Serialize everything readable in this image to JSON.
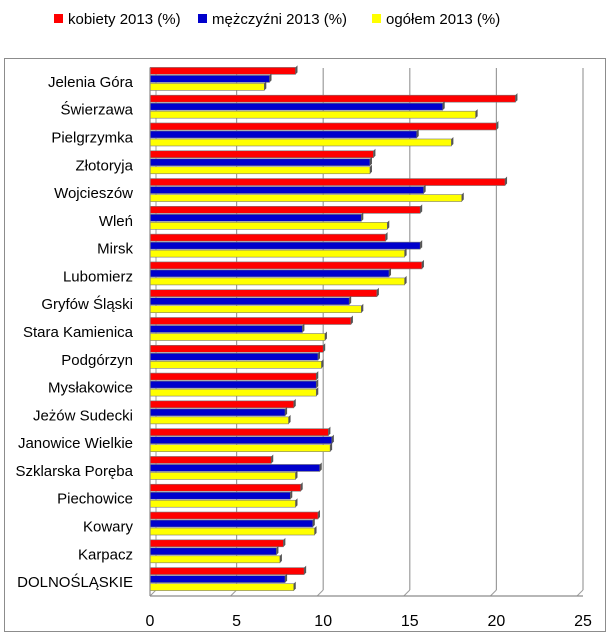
{
  "chart_data": {
    "type": "bar",
    "orientation": "horizontal",
    "categories": [
      "Jelenia Góra",
      "Świerzawa",
      "Pielgrzymka",
      "Złotoryja",
      "Wojcieszów",
      "Wleń",
      "Mirsk",
      "Lubomierz",
      "Gryfów Śląski",
      "Stara Kamienica",
      "Podgórzyn",
      "Mysłakowice",
      "Jeżów Sudecki",
      "Janowice Wielkie",
      "Szklarska Poręba",
      "Piechowice",
      "Kowary",
      "Karpacz",
      "DOLNOŚLĄSKIE"
    ],
    "series": [
      {
        "name": "kobiety 2013 (%)",
        "color": "#ff0000",
        "values": [
          8.4,
          21.1,
          20.0,
          12.9,
          20.5,
          15.6,
          13.6,
          15.7,
          13.1,
          11.6,
          10.0,
          9.6,
          8.3,
          10.3,
          7.0,
          8.7,
          9.7,
          7.7,
          8.9
        ]
      },
      {
        "name": "mężczyźni 2013 (%)",
        "color": "#0000cc",
        "values": [
          6.9,
          16.9,
          15.4,
          12.7,
          15.8,
          12.2,
          15.6,
          13.8,
          11.5,
          8.8,
          9.7,
          9.6,
          7.8,
          10.5,
          9.8,
          8.1,
          9.4,
          7.3,
          7.8
        ]
      },
      {
        "name": "ogółem 2013 (%)",
        "color": "#ffff00",
        "values": [
          6.6,
          18.8,
          17.4,
          12.7,
          18.0,
          13.7,
          14.7,
          14.7,
          12.2,
          10.1,
          9.9,
          9.6,
          8.0,
          10.4,
          8.4,
          8.4,
          9.5,
          7.5,
          8.3
        ]
      }
    ],
    "xlim": [
      0,
      25
    ],
    "xticks": [
      "0",
      "5",
      "10",
      "15",
      "20",
      "25"
    ],
    "grid": true,
    "legend_position": "top"
  }
}
